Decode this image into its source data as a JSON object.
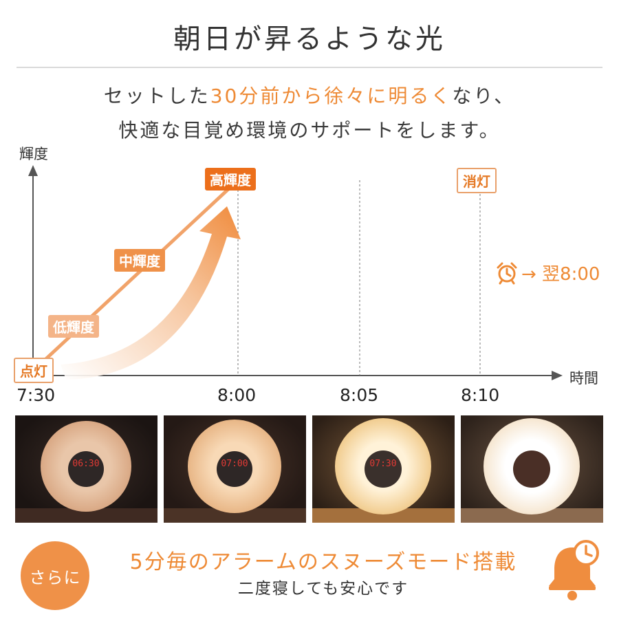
{
  "header": {
    "title": "朝日が昇るような光"
  },
  "subtitle": {
    "line1_pre": "セットした",
    "line1_highlight": "30分前から徐々に明るく",
    "line1_post": "なり、",
    "line2": "快適な目覚め環境のサポートをします。"
  },
  "chart": {
    "y_axis_label": "輝度",
    "x_axis_label": "時間",
    "time_labels": [
      "7:30",
      "8:00",
      "8:05",
      "8:10"
    ],
    "badges": {
      "on": "点灯",
      "low": "低輝度",
      "mid": "中輝度",
      "high": "高輝度",
      "off": "消灯"
    },
    "alarm_note": "→ 翌8:00",
    "accent_color": "#ee8a35"
  },
  "photos": [
    {
      "clock_time": "06:30",
      "brightness": "low"
    },
    {
      "clock_time": "07:00",
      "brightness": "mid"
    },
    {
      "clock_time": "07:30",
      "brightness": "high"
    },
    {
      "clock_time": "",
      "brightness": "max"
    }
  ],
  "footer": {
    "circle_label": "さらに",
    "main_text": "5分毎のアラームのスヌーズモード搭載",
    "sub_text": "二度寝しても安心です",
    "icon": "bell-clock-icon"
  }
}
